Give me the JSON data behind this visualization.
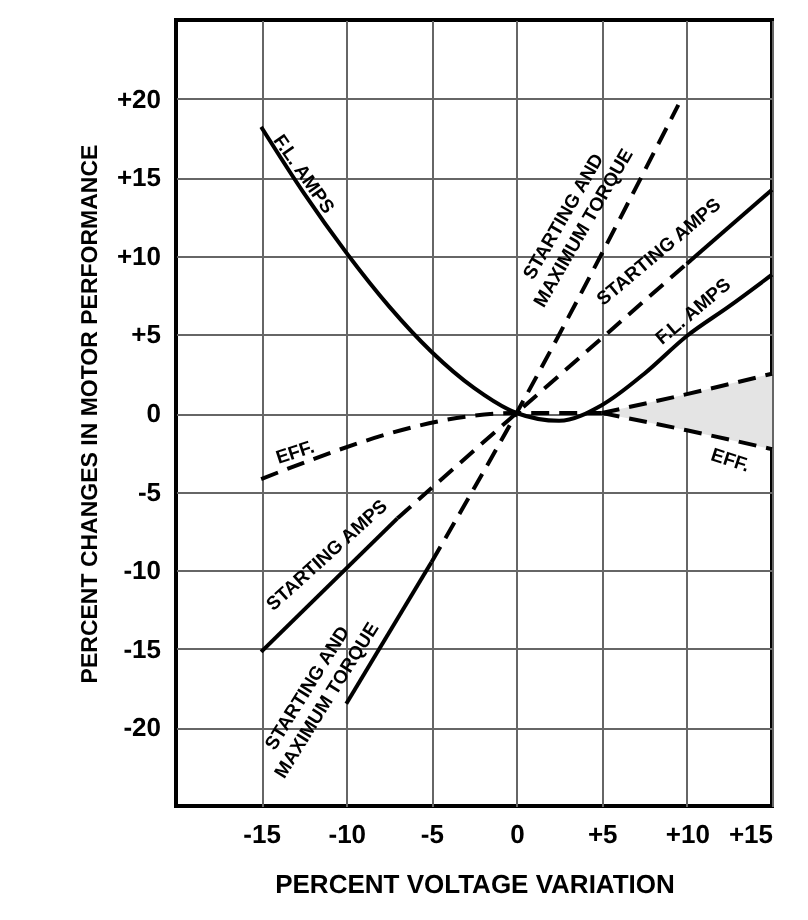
{
  "chart_data": {
    "type": "line",
    "xlabel": "PERCENT VOLTAGE VARIATION",
    "ylabel": "PERCENT CHANGES IN MOTOR PERFORMANCE",
    "xlim": [
      -20,
      15
    ],
    "ylim": [
      -25,
      25
    ],
    "xticks": [
      -15,
      -10,
      -5,
      0,
      {
        "value": 5,
        "label": "+5"
      },
      {
        "value": 10,
        "label": "+10"
      },
      {
        "value": 15,
        "label": "+15"
      }
    ],
    "yticks": [
      -20,
      -15,
      -10,
      -5,
      0,
      {
        "value": 5,
        "label": "+5"
      },
      {
        "value": 10,
        "label": "+10"
      },
      {
        "value": 15,
        "label": "+15"
      },
      {
        "value": 20,
        "label": "+20"
      }
    ],
    "grid": true,
    "series": [
      {
        "x": [
          -15,
          -12.5,
          -10,
          -7.5,
          -5,
          -2.5,
          0,
          2.5,
          5,
          7.5,
          10,
          12.5,
          15
        ],
        "values": [
          18.2,
          14,
          10.2,
          6.8,
          3.9,
          1.6,
          0,
          -0.5,
          0.5,
          2.5,
          4.9,
          6.8,
          8.8
        ],
        "color": "#000000",
        "line_style": "solid"
      },
      {
        "x": [
          -5,
          0,
          9.5
        ],
        "values": [
          -9.5,
          0,
          19.6
        ],
        "color": "#000000",
        "line_style": "dashed"
      },
      {
        "x": [
          -5,
          -10
        ],
        "values": [
          -9.5,
          -18.5
        ],
        "color": "#000000",
        "line_style": "solid"
      },
      {
        "x": [
          -7,
          0,
          10
        ],
        "values": [
          -6.7,
          0,
          9.5
        ],
        "color": "#000000",
        "line_style": "dashed"
      },
      {
        "x": [
          10,
          15
        ],
        "values": [
          9.5,
          14.2
        ],
        "color": "#000000",
        "line_style": "solid"
      },
      {
        "x": [
          -7,
          -15
        ],
        "values": [
          -6.7,
          -15.2
        ],
        "color": "#000000",
        "line_style": "solid"
      },
      {
        "x": [
          -15,
          0,
          5
        ],
        "values": [
          -4.2,
          0,
          0
        ],
        "color": "#000000",
        "line_style": "dashed"
      },
      {
        "x": [
          5,
          10,
          15
        ],
        "values": [
          0,
          1.2,
          2.5
        ],
        "color": "#000000",
        "line_style": "dashed"
      },
      {
        "x": [
          5,
          10,
          15
        ],
        "values": [
          0,
          -1.1,
          -2.3
        ],
        "lower": [
          0,
          -1.1,
          -2.3
        ],
        "upper": [
          0,
          1.2,
          2.5
        ],
        "color": "#000000",
        "line_style": "dashed"
      }
    ],
    "annotations": [
      {
        "text": "F.L. AMPS",
        "x": -12.5,
        "y": 15.2
      },
      "STARTING AND\nMAXIMUM TORQUE",
      "STARTING AMPS",
      {
        "text": "F.L. AMPS",
        "x": 11.5,
        "y": 6
      },
      {
        "text": "EFF.",
        "x": -13,
        "y": -2.5
      },
      "EFF.",
      {
        "text": "STARTING AMPS",
        "x": -9.9,
        "y": -9.2
      },
      "STARTING AND\nMAXIMUM TORQUE"
    ]
  }
}
